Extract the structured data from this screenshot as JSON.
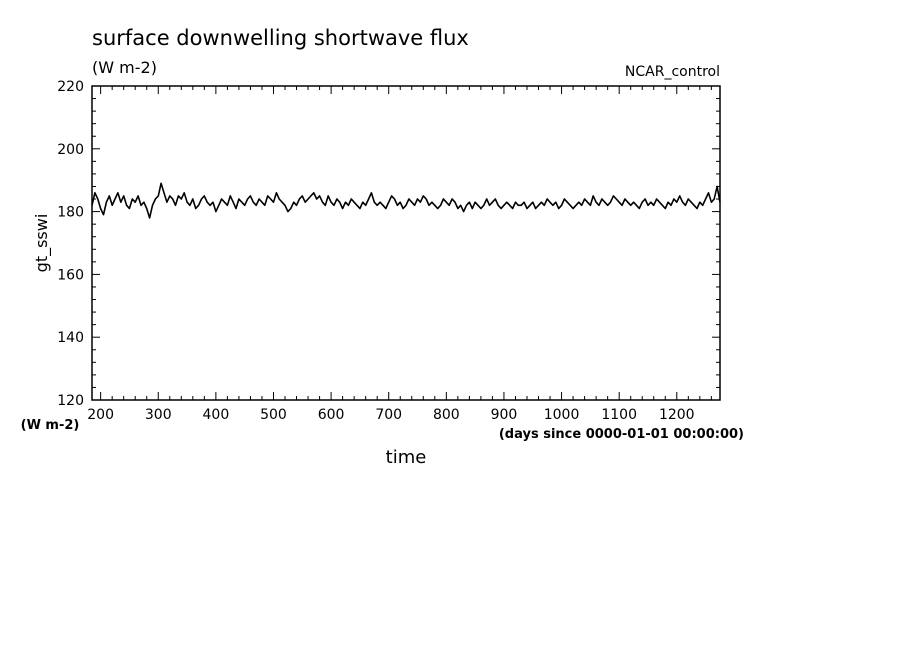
{
  "chart_data": {
    "type": "line",
    "title": "surface downwelling shortwave flux",
    "subtitle": "(W m-2)",
    "experiment": "NCAR_control",
    "xlabel": "time",
    "x_units": "(days since 0000-01-01 00:00:00)",
    "ylabel": "gt_sswi",
    "y_units": "(W m-2)",
    "xlim": [
      185,
      1275
    ],
    "ylim": [
      120,
      220
    ],
    "x_ticks": [
      200,
      300,
      400,
      500,
      600,
      700,
      800,
      900,
      1000,
      1100,
      1200
    ],
    "y_ticks": [
      120,
      140,
      160,
      180,
      200,
      220
    ],
    "grid": false,
    "series": [
      {
        "x": [
          185,
          190,
          195,
          200,
          205,
          210,
          215,
          220,
          225,
          230,
          235,
          240,
          245,
          250,
          255,
          260,
          265,
          270,
          275,
          280,
          285,
          290,
          295,
          300,
          305,
          310,
          315,
          320,
          325,
          330,
          335,
          340,
          345,
          350,
          355,
          360,
          365,
          370,
          375,
          380,
          385,
          390,
          395,
          400,
          405,
          410,
          415,
          420,
          425,
          430,
          435,
          440,
          445,
          450,
          455,
          460,
          465,
          470,
          475,
          480,
          485,
          490,
          495,
          500,
          505,
          510,
          515,
          520,
          525,
          530,
          535,
          540,
          545,
          550,
          555,
          560,
          565,
          570,
          575,
          580,
          585,
          590,
          595,
          600,
          605,
          610,
          615,
          620,
          625,
          630,
          635,
          640,
          645,
          650,
          655,
          660,
          665,
          670,
          675,
          680,
          685,
          690,
          695,
          700,
          705,
          710,
          715,
          720,
          725,
          730,
          735,
          740,
          745,
          750,
          755,
          760,
          765,
          770,
          775,
          780,
          785,
          790,
          795,
          800,
          805,
          810,
          815,
          820,
          825,
          830,
          835,
          840,
          845,
          850,
          855,
          860,
          865,
          870,
          875,
          880,
          885,
          890,
          895,
          900,
          905,
          910,
          915,
          920,
          925,
          930,
          935,
          940,
          945,
          950,
          955,
          960,
          965,
          970,
          975,
          980,
          985,
          990,
          995,
          1000,
          1005,
          1010,
          1015,
          1020,
          1025,
          1030,
          1035,
          1040,
          1045,
          1050,
          1055,
          1060,
          1065,
          1070,
          1075,
          1080,
          1085,
          1090,
          1095,
          1100,
          1105,
          1110,
          1115,
          1120,
          1125,
          1130,
          1135,
          1140,
          1145,
          1150,
          1155,
          1160,
          1165,
          1170,
          1175,
          1180,
          1185,
          1190,
          1195,
          1200,
          1205,
          1210,
          1215,
          1220,
          1225,
          1230,
          1235,
          1240,
          1245,
          1250,
          1255,
          1260,
          1265,
          1270,
          1275
        ],
        "y": [
          182,
          186,
          184,
          181,
          179,
          183,
          185,
          182,
          184,
          186,
          183,
          185,
          182,
          181,
          184,
          183,
          185,
          182,
          183,
          181,
          178,
          182,
          184,
          185,
          189,
          186,
          183,
          185,
          184,
          182,
          185,
          184,
          186,
          183,
          182,
          184,
          181,
          182,
          184,
          185,
          183,
          182,
          183,
          180,
          182,
          184,
          183,
          182,
          185,
          183,
          181,
          184,
          183,
          182,
          184,
          185,
          183,
          182,
          184,
          183,
          182,
          185,
          184,
          183,
          186,
          184,
          183,
          182,
          180,
          181,
          183,
          182,
          184,
          185,
          183,
          184,
          185,
          186,
          184,
          185,
          183,
          182,
          185,
          183,
          182,
          184,
          183,
          181,
          183,
          182,
          184,
          183,
          182,
          181,
          183,
          182,
          184,
          186,
          183,
          182,
          183,
          182,
          181,
          183,
          185,
          184,
          182,
          183,
          181,
          182,
          184,
          183,
          182,
          184,
          183,
          185,
          184,
          182,
          183,
          182,
          181,
          182,
          184,
          183,
          182,
          184,
          183,
          181,
          182,
          180,
          182,
          183,
          181,
          183,
          182,
          181,
          182,
          184,
          182,
          183,
          184,
          182,
          181,
          182,
          183,
          182,
          181,
          183,
          182,
          182,
          183,
          181,
          182,
          183,
          181,
          182,
          183,
          182,
          184,
          183,
          182,
          183,
          181,
          182,
          184,
          183,
          182,
          181,
          182,
          183,
          182,
          184,
          183,
          182,
          185,
          183,
          182,
          184,
          183,
          182,
          183,
          185,
          184,
          183,
          182,
          184,
          183,
          182,
          183,
          182,
          181,
          183,
          184,
          182,
          183,
          182,
          184,
          183,
          182,
          181,
          183,
          182,
          184,
          183,
          185,
          183,
          182,
          184,
          183,
          182,
          181,
          183,
          182,
          184,
          186,
          183,
          184,
          188,
          183
        ]
      }
    ]
  }
}
